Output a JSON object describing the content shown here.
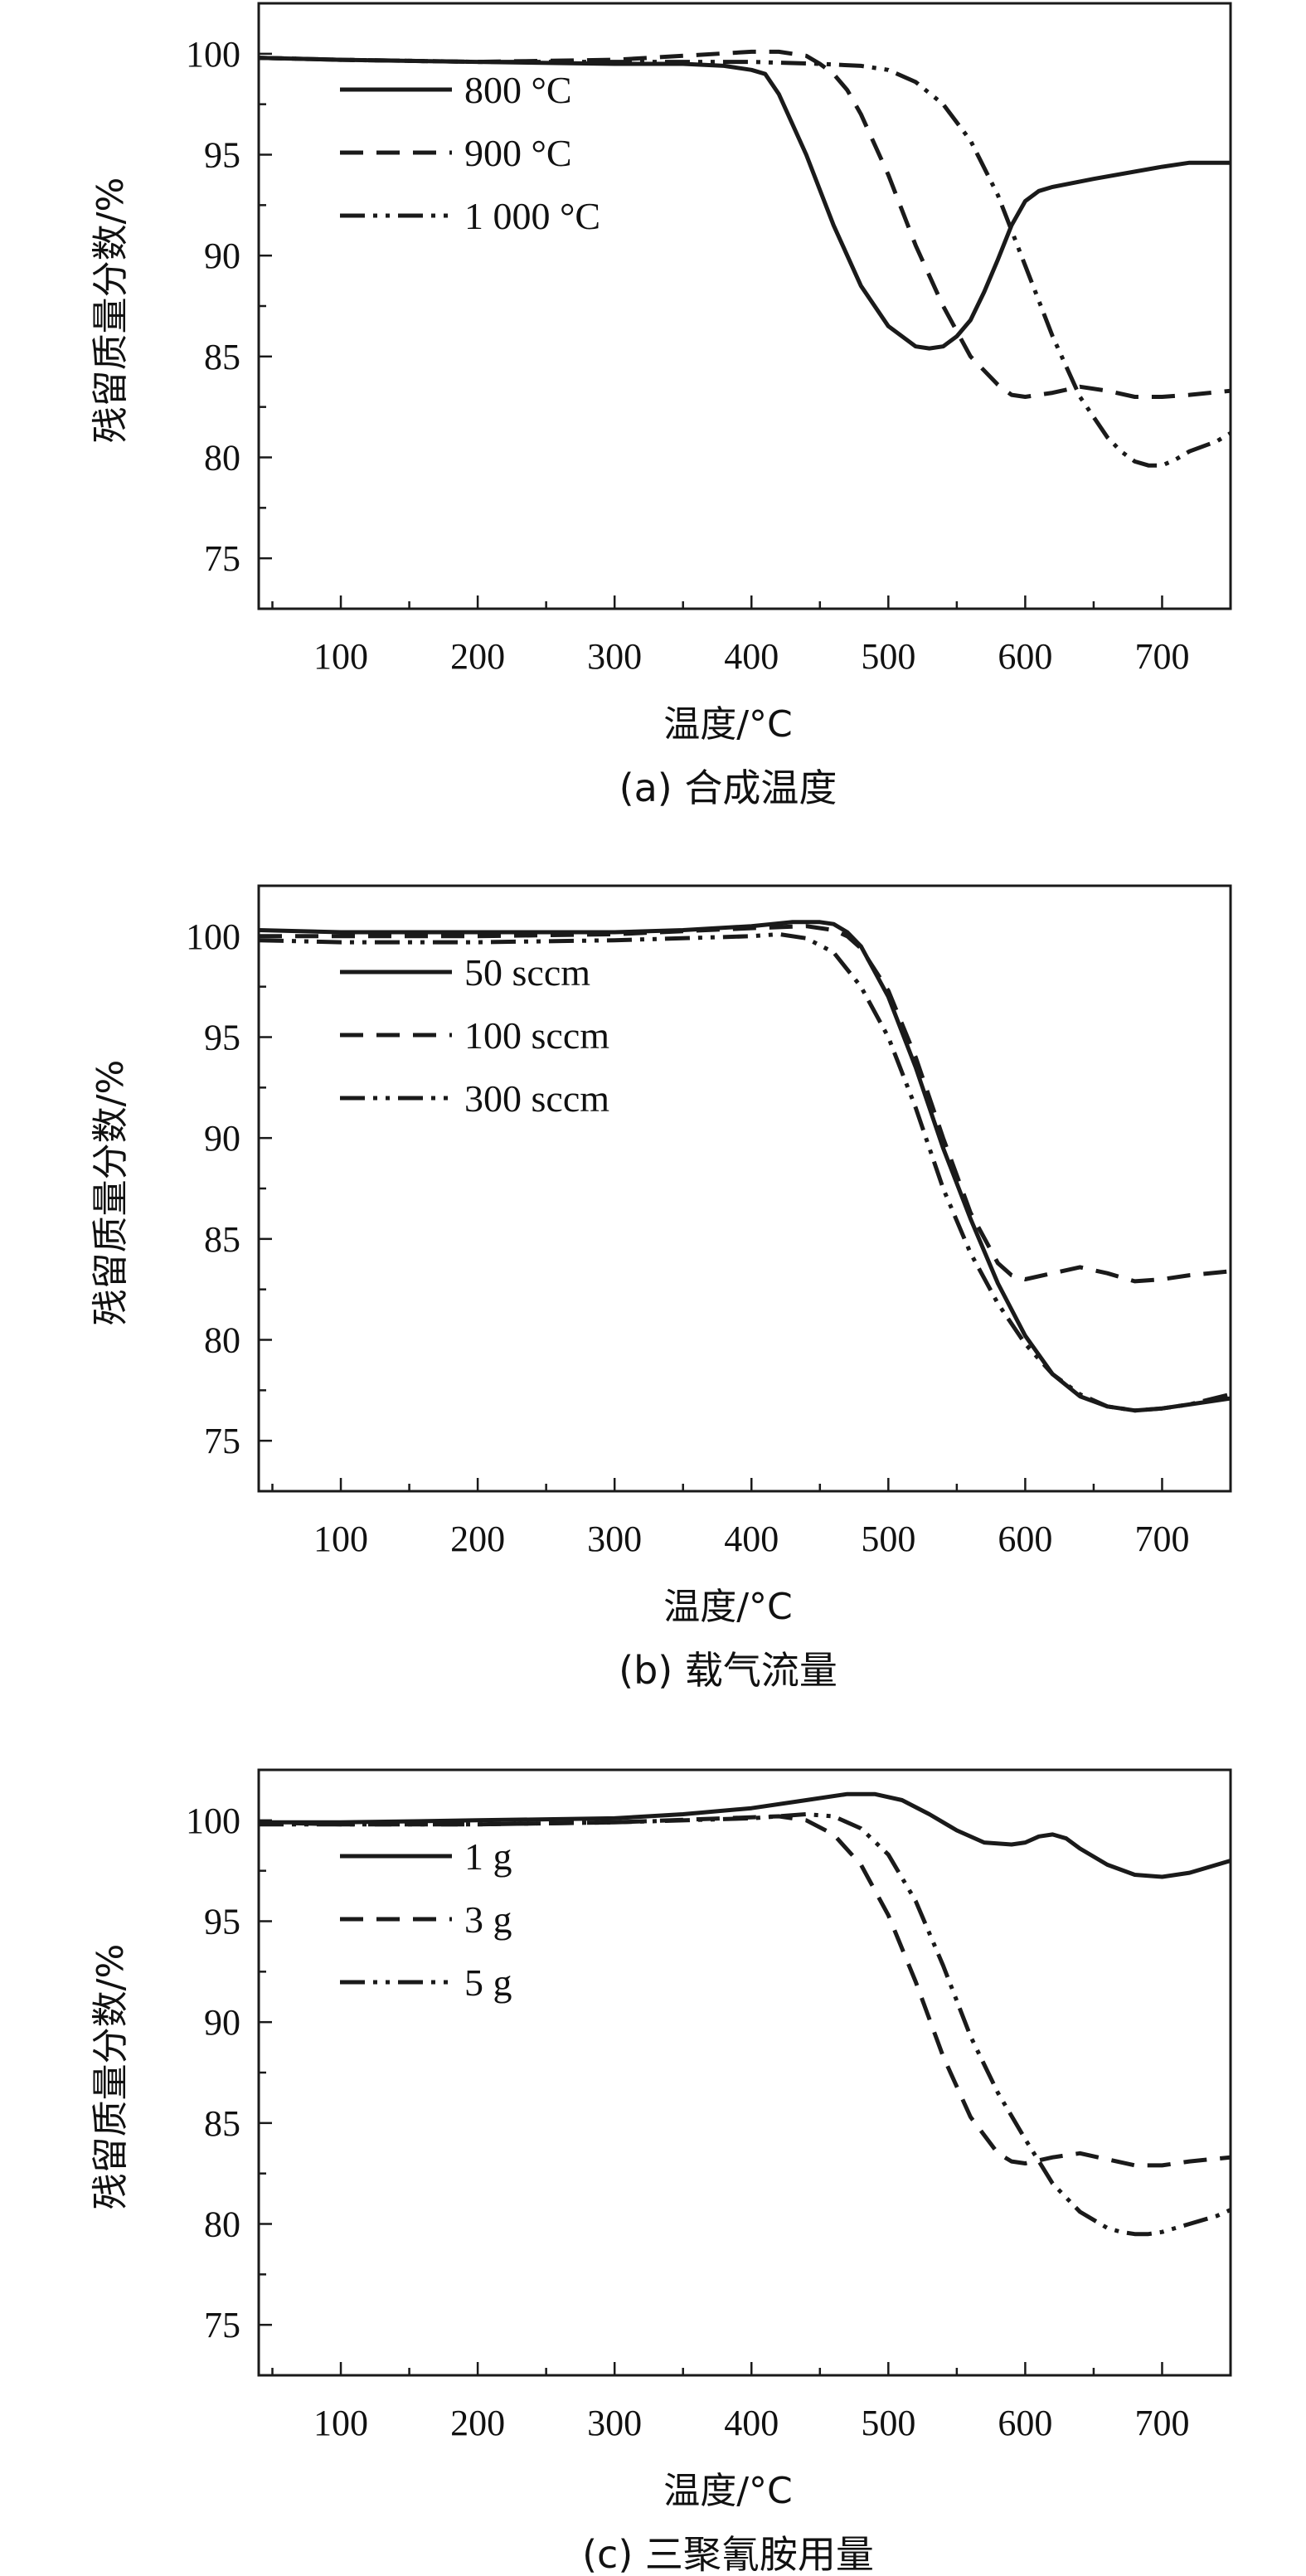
{
  "figure": {
    "line_color": "#1a1a1a"
  },
  "chart_data": [
    {
      "type": "line",
      "caption": "(a) 合成温度",
      "xlabel": "温度/°C",
      "ylabel": "残留质量分数/%",
      "xlim": [
        40,
        750
      ],
      "ylim": [
        72.5,
        102.5
      ],
      "xticks": [
        "100",
        "200",
        "300",
        "400",
        "500",
        "600",
        "700"
      ],
      "yticks": [
        "75",
        "80",
        "85",
        "90",
        "95",
        "100"
      ],
      "legend_position": "top-left",
      "series": [
        {
          "name": "800 °C",
          "style": "solid",
          "x": [
            40,
            100,
            200,
            300,
            350,
            380,
            400,
            410,
            420,
            440,
            460,
            480,
            500,
            520,
            530,
            540,
            550,
            560,
            570,
            580,
            590,
            600,
            610,
            620,
            650,
            700,
            720,
            750
          ],
          "y": [
            99.8,
            99.7,
            99.6,
            99.5,
            99.5,
            99.4,
            99.2,
            99.0,
            98.0,
            95.0,
            91.5,
            88.5,
            86.5,
            85.5,
            85.4,
            85.5,
            86.0,
            86.8,
            88.2,
            89.8,
            91.5,
            92.7,
            93.2,
            93.4,
            93.8,
            94.4,
            94.6,
            94.6
          ]
        },
        {
          "name": "900 °C",
          "style": "dashed",
          "x": [
            40,
            100,
            200,
            300,
            350,
            400,
            420,
            440,
            450,
            460,
            470,
            480,
            500,
            520,
            540,
            560,
            580,
            590,
            600,
            620,
            640,
            660,
            680,
            700,
            720,
            750
          ],
          "y": [
            99.8,
            99.7,
            99.6,
            99.7,
            99.9,
            100.1,
            100.1,
            99.9,
            99.5,
            99.0,
            98.2,
            97.0,
            94.0,
            90.5,
            87.5,
            85.0,
            83.6,
            83.1,
            83.0,
            83.2,
            83.5,
            83.3,
            83.0,
            83.0,
            83.1,
            83.3
          ]
        },
        {
          "name": "1 000 °C",
          "style": "dashdotdot",
          "x": [
            40,
            100,
            200,
            300,
            400,
            450,
            480,
            500,
            520,
            540,
            560,
            580,
            600,
            620,
            640,
            660,
            670,
            680,
            690,
            700,
            710,
            720,
            740,
            750
          ],
          "y": [
            99.8,
            99.7,
            99.6,
            99.6,
            99.6,
            99.5,
            99.4,
            99.2,
            98.6,
            97.5,
            95.7,
            93.0,
            89.5,
            86.0,
            83.0,
            81.0,
            80.3,
            79.8,
            79.6,
            79.6,
            79.9,
            80.3,
            80.8,
            81.2
          ]
        }
      ]
    },
    {
      "type": "line",
      "caption": "(b) 载气流量",
      "xlabel": "温度/°C",
      "ylabel": "残留质量分数/%",
      "xlim": [
        40,
        750
      ],
      "ylim": [
        72.5,
        102.5
      ],
      "xticks": [
        "100",
        "200",
        "300",
        "400",
        "500",
        "600",
        "700"
      ],
      "yticks": [
        "75",
        "80",
        "85",
        "90",
        "95",
        "100"
      ],
      "legend_position": "top-left",
      "series": [
        {
          "name": "50 sccm",
          "style": "solid",
          "x": [
            40,
            100,
            200,
            300,
            350,
            400,
            430,
            450,
            460,
            470,
            480,
            500,
            520,
            540,
            560,
            580,
            600,
            620,
            640,
            660,
            680,
            700,
            720,
            750
          ],
          "y": [
            100.3,
            100.2,
            100.2,
            100.2,
            100.3,
            100.5,
            100.7,
            100.7,
            100.6,
            100.2,
            99.5,
            97.0,
            93.5,
            89.5,
            86.0,
            82.8,
            80.2,
            78.3,
            77.2,
            76.7,
            76.5,
            76.6,
            76.8,
            77.1
          ]
        },
        {
          "name": "100 sccm",
          "style": "dashed",
          "x": [
            40,
            100,
            200,
            300,
            400,
            440,
            460,
            470,
            480,
            500,
            520,
            540,
            560,
            580,
            590,
            600,
            620,
            640,
            660,
            680,
            700,
            720,
            750
          ],
          "y": [
            100.0,
            100.0,
            100.0,
            100.1,
            100.4,
            100.5,
            100.3,
            100.0,
            99.4,
            97.3,
            94.0,
            90.0,
            86.3,
            83.8,
            83.2,
            83.0,
            83.3,
            83.6,
            83.3,
            82.9,
            83.0,
            83.2,
            83.4
          ]
        },
        {
          "name": "300 sccm",
          "style": "dashdotdot",
          "x": [
            40,
            100,
            200,
            300,
            400,
            420,
            440,
            460,
            480,
            500,
            520,
            540,
            560,
            580,
            600,
            620,
            640,
            660,
            680,
            700,
            720,
            750
          ],
          "y": [
            99.8,
            99.7,
            99.7,
            99.8,
            100.0,
            100.1,
            99.9,
            99.2,
            97.5,
            95.0,
            91.5,
            87.5,
            84.3,
            81.8,
            79.8,
            78.3,
            77.3,
            76.7,
            76.5,
            76.6,
            76.8,
            77.3
          ]
        }
      ]
    },
    {
      "type": "line",
      "caption": "(c) 三聚氰胺用量",
      "xlabel": "温度/°C",
      "ylabel": "残留质量分数/%",
      "xlim": [
        40,
        750
      ],
      "ylim": [
        72.5,
        102.5
      ],
      "xticks": [
        "100",
        "200",
        "300",
        "400",
        "500",
        "600",
        "700"
      ],
      "yticks": [
        "75",
        "80",
        "85",
        "90",
        "95",
        "100"
      ],
      "legend_position": "top-left",
      "series": [
        {
          "name": "1 g",
          "style": "solid",
          "x": [
            40,
            100,
            200,
            300,
            350,
            400,
            440,
            470,
            490,
            510,
            530,
            550,
            570,
            590,
            600,
            610,
            620,
            630,
            640,
            660,
            680,
            700,
            720,
            750
          ],
          "y": [
            99.9,
            99.9,
            100.0,
            100.1,
            100.3,
            100.6,
            101.0,
            101.3,
            101.3,
            101.0,
            100.3,
            99.5,
            98.9,
            98.8,
            98.9,
            99.2,
            99.3,
            99.1,
            98.6,
            97.8,
            97.3,
            97.2,
            97.4,
            98.0
          ]
        },
        {
          "name": "3 g",
          "style": "dashed",
          "x": [
            40,
            100,
            200,
            300,
            380,
            420,
            440,
            460,
            480,
            500,
            520,
            540,
            560,
            580,
            590,
            600,
            620,
            640,
            660,
            680,
            700,
            720,
            750
          ],
          "y": [
            99.9,
            99.8,
            99.8,
            99.9,
            100.1,
            100.2,
            100.0,
            99.3,
            97.8,
            95.3,
            92.0,
            88.3,
            85.3,
            83.5,
            83.1,
            83.0,
            83.3,
            83.5,
            83.2,
            82.9,
            82.9,
            83.1,
            83.3
          ]
        },
        {
          "name": "5 g",
          "style": "dashdotdot",
          "x": [
            40,
            100,
            200,
            300,
            400,
            440,
            460,
            480,
            500,
            520,
            540,
            560,
            580,
            600,
            620,
            640,
            660,
            670,
            680,
            690,
            700,
            720,
            740,
            750
          ],
          "y": [
            99.8,
            99.8,
            99.8,
            99.9,
            100.1,
            100.3,
            100.2,
            99.6,
            98.3,
            96.0,
            92.8,
            89.3,
            86.5,
            84.2,
            82.0,
            80.6,
            79.8,
            79.6,
            79.5,
            79.5,
            79.6,
            80.0,
            80.4,
            80.7
          ]
        }
      ]
    }
  ]
}
